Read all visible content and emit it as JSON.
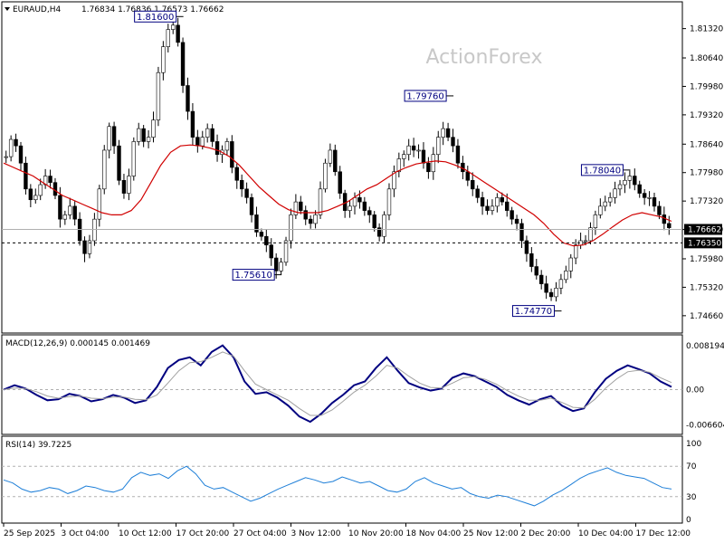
{
  "chart_data": {
    "type": "candlestick",
    "symbol_header": "EURAUD,H4",
    "ohlc_header": "1.76834 1.76836 1.76573 1.76662",
    "watermark": "ActionForex",
    "price_axis": {
      "ylim": [
        1.743,
        1.819
      ],
      "ticks": [
        "1.81320",
        "1.80640",
        "1.79980",
        "1.79320",
        "1.78640",
        "1.77980",
        "1.77320",
        "1.76660",
        "1.75980",
        "1.75320",
        "1.74660"
      ]
    },
    "time_axis": {
      "ticks": [
        "25 Sep 2025",
        "3 Oct 04:00",
        "10 Oct 12:00",
        "17 Oct 20:00",
        "27 Oct 04:00",
        "3 Nov 12:00",
        "10 Nov 20:00",
        "18 Nov 04:00",
        "25 Nov 12:00",
        "2 Dec 20:00",
        "10 Dec 04:00",
        "17 Dec 12:00"
      ]
    },
    "current_price": {
      "label": "1.76662",
      "value": 1.76662
    },
    "support_line": {
      "label": "1.76350",
      "value": 1.7635
    },
    "annotations": [
      {
        "label": "1.81600",
        "value": 1.816,
        "bar": 35
      },
      {
        "label": "1.79760",
        "value": 1.7976,
        "bar": 90
      },
      {
        "label": "1.75610",
        "value": 1.7561,
        "bar": 55
      },
      {
        "label": "1.74770",
        "value": 1.7477,
        "bar": 112
      },
      {
        "label": "1.78040",
        "value": 1.7804,
        "bar": 126
      }
    ],
    "closes": [
      1.7835,
      1.7875,
      1.786,
      1.782,
      1.776,
      1.7735,
      1.7745,
      1.777,
      1.779,
      1.7775,
      1.7745,
      1.769,
      1.77,
      1.772,
      1.769,
      1.764,
      1.761,
      1.764,
      1.769,
      1.776,
      1.785,
      1.7905,
      1.786,
      1.778,
      1.775,
      1.779,
      1.787,
      1.79,
      1.787,
      1.788,
      1.792,
      1.803,
      1.809,
      1.813,
      1.814,
      1.81,
      1.8,
      1.794,
      1.788,
      1.786,
      1.788,
      1.79,
      1.787,
      1.784,
      1.785,
      1.787,
      1.781,
      1.778,
      1.776,
      1.774,
      1.77,
      1.766,
      1.765,
      1.763,
      1.76,
      1.757,
      1.759,
      1.764,
      1.77,
      1.773,
      1.771,
      1.769,
      1.768,
      1.77,
      1.776,
      1.782,
      1.785,
      1.78,
      1.775,
      1.771,
      1.772,
      1.774,
      1.773,
      1.771,
      1.77,
      1.767,
      1.765,
      1.77,
      1.776,
      1.78,
      1.783,
      1.784,
      1.786,
      1.785,
      1.785,
      1.782,
      1.78,
      1.784,
      1.788,
      1.79,
      1.788,
      1.786,
      1.782,
      1.78,
      1.778,
      1.776,
      1.774,
      1.772,
      1.771,
      1.772,
      1.774,
      1.773,
      1.771,
      1.769,
      1.768,
      1.764,
      1.761,
      1.758,
      1.756,
      1.754,
      1.752,
      1.751,
      1.753,
      1.755,
      1.757,
      1.76,
      1.763,
      1.764,
      1.764,
      1.767,
      1.77,
      1.772,
      1.773,
      1.774,
      1.776,
      1.777,
      1.778,
      1.779,
      1.777,
      1.775,
      1.774,
      1.774,
      1.772,
      1.77,
      1.768,
      1.767
    ],
    "moving_average": [
      1.782,
      1.781,
      1.78,
      1.779,
      1.7775,
      1.776,
      1.7745,
      1.7735,
      1.7725,
      1.7715,
      1.7705,
      1.77,
      1.77,
      1.771,
      1.7735,
      1.7775,
      1.7815,
      1.7845,
      1.786,
      1.7862,
      1.786,
      1.7855,
      1.7848,
      1.7835,
      1.7815,
      1.779,
      1.7765,
      1.7745,
      1.7725,
      1.7712,
      1.7705,
      1.7705,
      1.7705,
      1.771,
      1.772,
      1.773,
      1.7745,
      1.776,
      1.777,
      1.7785,
      1.78,
      1.781,
      1.7818,
      1.7822,
      1.7825,
      1.7823,
      1.7815,
      1.7805,
      1.779,
      1.7775,
      1.776,
      1.7745,
      1.773,
      1.7715,
      1.77,
      1.768,
      1.7655,
      1.7635,
      1.7628,
      1.763,
      1.764,
      1.7655,
      1.7672,
      1.7688,
      1.77,
      1.7705,
      1.77,
      1.7695,
      1.7685
    ],
    "macd": {
      "label": "MACD(12,26,9) 0.000145 0.001469",
      "ticks": [
        "0.008194",
        "0.00",
        "-0.006604"
      ],
      "ylim": [
        -0.008,
        0.0095
      ],
      "values": [
        0.0,
        0.0008,
        0.0002,
        -0.001,
        -0.002,
        -0.0018,
        -0.0008,
        -0.0012,
        -0.0022,
        -0.0018,
        -0.001,
        -0.0015,
        -0.0025,
        -0.002,
        0.0005,
        0.004,
        0.0055,
        0.006,
        0.0045,
        0.007,
        0.0082,
        0.006,
        0.0015,
        -0.0008,
        -0.0005,
        -0.0015,
        -0.003,
        -0.005,
        -0.006,
        -0.0045,
        -0.0025,
        -0.001,
        0.0008,
        0.0015,
        0.004,
        0.006,
        0.0035,
        0.0012,
        0.0004,
        -0.0002,
        0.0002,
        0.0022,
        0.003,
        0.0025,
        0.0015,
        0.0005,
        -0.001,
        -0.002,
        -0.0028,
        -0.0018,
        -0.0012,
        -0.003,
        -0.004,
        -0.0035,
        -0.0005,
        0.002,
        0.0035,
        0.0045,
        0.0038,
        0.003,
        0.0015,
        0.0005
      ],
      "signal": [
        0.0,
        0.0003,
        0.0002,
        -0.0004,
        -0.0012,
        -0.0016,
        -0.0013,
        -0.0012,
        -0.0016,
        -0.0017,
        -0.0014,
        -0.0014,
        -0.0018,
        -0.0019,
        -0.001,
        0.0012,
        0.0035,
        0.005,
        0.0052,
        0.006,
        0.007,
        0.0062,
        0.0035,
        0.001,
        0.0,
        -0.001,
        -0.002,
        -0.0035,
        -0.0048,
        -0.0048,
        -0.0038,
        -0.0022,
        -0.0005,
        0.0008,
        0.0025,
        0.0045,
        0.004,
        0.0025,
        0.0012,
        0.0004,
        0.0003,
        0.0012,
        0.0022,
        0.0024,
        0.0019,
        0.001,
        -0.0002,
        -0.0012,
        -0.002,
        -0.002,
        -0.0016,
        -0.0024,
        -0.0033,
        -0.0034,
        -0.0018,
        0.0003,
        0.002,
        0.0033,
        0.0036,
        0.0032,
        0.0022,
        0.0013
      ]
    },
    "rsi": {
      "label": "RSI(14) 39.7225",
      "ticks": [
        "100",
        "70",
        "30",
        "0"
      ],
      "levels": [
        70,
        30
      ],
      "ylim": [
        0,
        100
      ],
      "values": [
        52,
        48,
        40,
        36,
        38,
        42,
        40,
        34,
        38,
        44,
        42,
        38,
        36,
        40,
        55,
        62,
        58,
        60,
        54,
        64,
        70,
        60,
        45,
        40,
        42,
        36,
        30,
        24,
        28,
        34,
        40,
        45,
        50,
        55,
        52,
        48,
        50,
        56,
        52,
        48,
        50,
        44,
        38,
        36,
        40,
        50,
        55,
        48,
        44,
        40,
        42,
        34,
        30,
        28,
        32,
        30,
        26,
        22,
        18,
        24,
        32,
        38,
        46,
        54,
        60,
        64,
        68,
        62,
        58,
        56,
        54,
        48,
        42,
        40
      ]
    }
  }
}
